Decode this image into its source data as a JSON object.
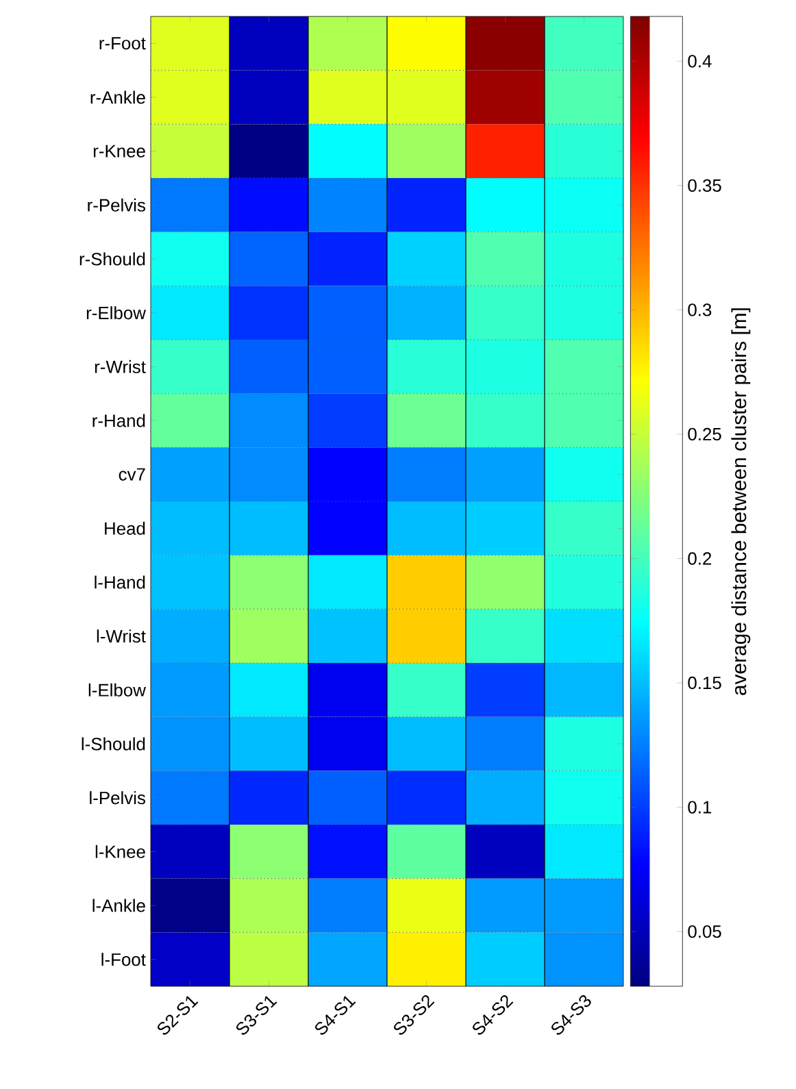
{
  "chart_data": {
    "type": "heatmap",
    "categories": [
      "S2-S1",
      "S3-S1",
      "S4-S1",
      "S3-S2",
      "S4-S2",
      "S4-S3"
    ],
    "y_categories": [
      "r-Foot",
      "r-Ankle",
      "r-Knee",
      "r-Pelvis",
      "r-Should",
      "r-Elbow",
      "r-Wrist",
      "r-Hand",
      "cv7",
      "Head",
      "l-Hand",
      "l-Wrist",
      "l-Elbow",
      "l-Should",
      "l-Pelvis",
      "l-Knee",
      "l-Ankle",
      "l-Foot"
    ],
    "cells": [
      [
        0.26,
        0.052,
        0.241,
        0.272,
        0.414,
        0.199
      ],
      [
        0.26,
        0.052,
        0.26,
        0.26,
        0.406,
        0.205
      ],
      [
        0.25,
        0.03,
        0.174,
        0.235,
        0.357,
        0.19
      ],
      [
        0.123,
        0.081,
        0.127,
        0.09,
        0.174,
        0.178
      ],
      [
        0.18,
        0.115,
        0.09,
        0.157,
        0.205,
        0.185
      ],
      [
        0.166,
        0.096,
        0.113,
        0.145,
        0.195,
        0.185
      ],
      [
        0.195,
        0.113,
        0.113,
        0.19,
        0.185,
        0.205
      ],
      [
        0.212,
        0.13,
        0.1,
        0.215,
        0.195,
        0.205
      ],
      [
        0.138,
        0.13,
        0.077,
        0.125,
        0.138,
        0.18
      ],
      [
        0.149,
        0.149,
        0.077,
        0.149,
        0.155,
        0.195
      ],
      [
        0.151,
        0.228,
        0.166,
        0.291,
        0.23,
        0.187
      ],
      [
        0.143,
        0.235,
        0.151,
        0.291,
        0.195,
        0.162
      ],
      [
        0.136,
        0.166,
        0.071,
        0.195,
        0.1,
        0.147
      ],
      [
        0.133,
        0.149,
        0.071,
        0.149,
        0.125,
        0.185
      ],
      [
        0.123,
        0.092,
        0.113,
        0.094,
        0.143,
        0.18
      ],
      [
        0.052,
        0.228,
        0.083,
        0.21,
        0.052,
        0.166
      ],
      [
        0.031,
        0.24,
        0.125,
        0.264,
        0.136,
        0.136
      ],
      [
        0.055,
        0.246,
        0.14,
        0.278,
        0.155,
        0.133
      ]
    ],
    "clim": [
      0.028,
      0.418
    ],
    "cticks": [
      0.05,
      0.1,
      0.15,
      0.2,
      0.25,
      0.3,
      0.35,
      0.4
    ],
    "clabel": "average distance between cluster pairs [m]",
    "grid": true
  }
}
